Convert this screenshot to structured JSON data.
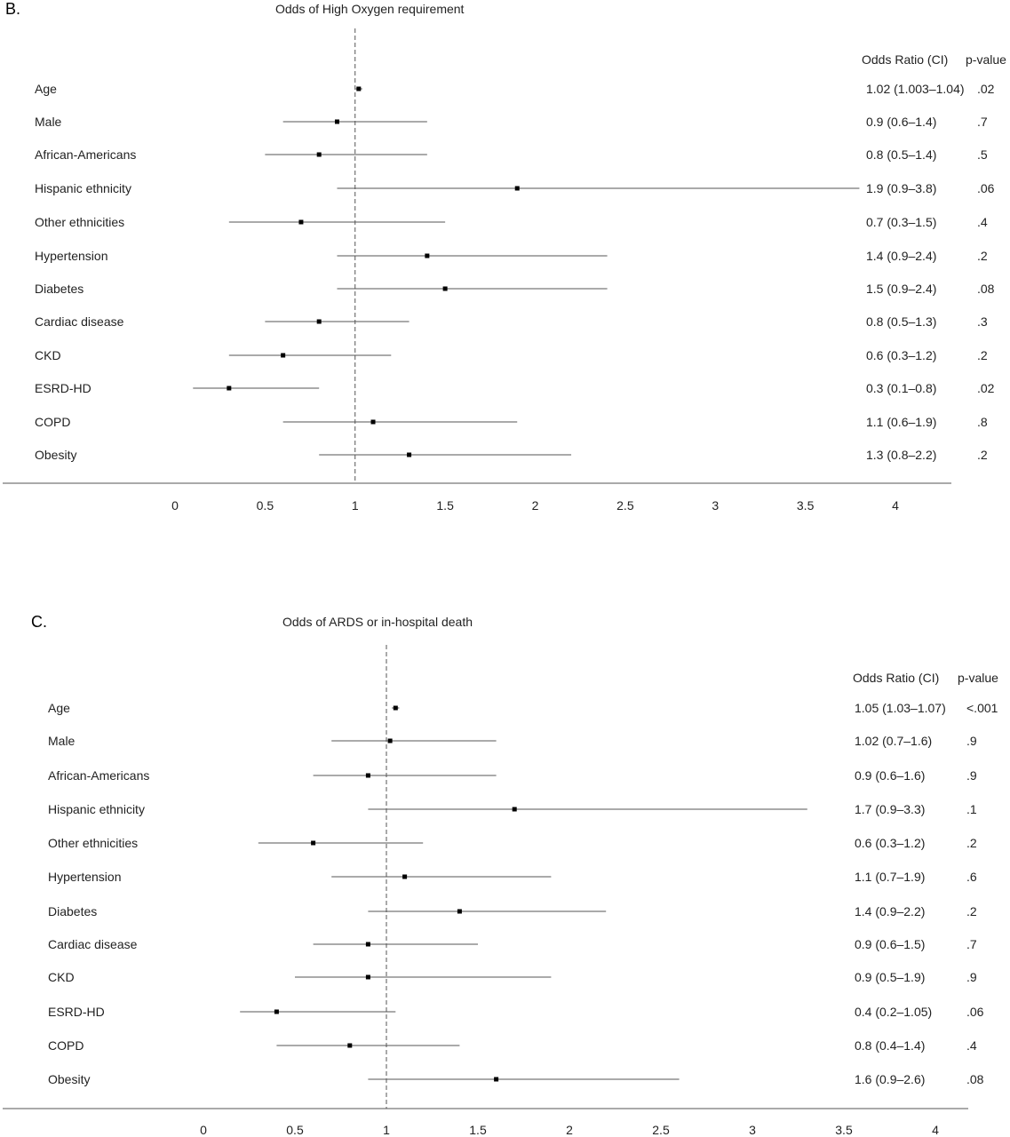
{
  "chart_data": [
    {
      "type": "forest",
      "panel_label": "B.",
      "title": "Odds of High Oxygen requirement",
      "column_headers": {
        "estimate": "Odds Ratio (CI)",
        "pvalue": "p-value"
      },
      "reference_value": 1,
      "xlim": [
        0,
        4
      ],
      "x_ticks": [
        0,
        0.5,
        1,
        1.5,
        2,
        2.5,
        3,
        3.5,
        4
      ],
      "x_tick_labels": [
        "0",
        "0.5",
        "1",
        "1.5",
        "2",
        "2.5",
        "3",
        "3.5",
        "4"
      ],
      "rows": [
        {
          "label": "Age",
          "or": 1.02,
          "lo": 1.003,
          "hi": 1.04,
          "ci_text": "1.02 (1.003–1.04)",
          "p": ".02"
        },
        {
          "label": "Male",
          "or": 0.9,
          "lo": 0.6,
          "hi": 1.4,
          "ci_text": "0.9 (0.6–1.4)",
          "p": ".7"
        },
        {
          "label": "African-Americans",
          "or": 0.8,
          "lo": 0.5,
          "hi": 1.4,
          "ci_text": "0.8 (0.5–1.4)",
          "p": ".5"
        },
        {
          "label": "Hispanic ethnicity",
          "or": 1.9,
          "lo": 0.9,
          "hi": 3.8,
          "ci_text": "1.9 (0.9–3.8)",
          "p": ".06"
        },
        {
          "label": "Other ethnicities",
          "or": 0.7,
          "lo": 0.3,
          "hi": 1.5,
          "ci_text": "0.7 (0.3–1.5)",
          "p": ".4"
        },
        {
          "label": "Hypertension",
          "or": 1.4,
          "lo": 0.9,
          "hi": 2.4,
          "ci_text": "1.4 (0.9–2.4)",
          "p": ".2"
        },
        {
          "label": "Diabetes",
          "or": 1.5,
          "lo": 0.9,
          "hi": 2.4,
          "ci_text": "1.5 (0.9–2.4)",
          "p": ".08"
        },
        {
          "label": "Cardiac disease",
          "or": 0.8,
          "lo": 0.5,
          "hi": 1.3,
          "ci_text": "0.8 (0.5–1.3)",
          "p": ".3"
        },
        {
          "label": "CKD",
          "or": 0.6,
          "lo": 0.3,
          "hi": 1.2,
          "ci_text": "0.6 (0.3–1.2)",
          "p": ".2"
        },
        {
          "label": "ESRD-HD",
          "or": 0.3,
          "lo": 0.1,
          "hi": 0.8,
          "ci_text": "0.3 (0.1–0.8)",
          "p": ".02"
        },
        {
          "label": "COPD",
          "or": 1.1,
          "lo": 0.6,
          "hi": 1.9,
          "ci_text": "1.1 (0.6–1.9)",
          "p": ".8"
        },
        {
          "label": "Obesity",
          "or": 1.3,
          "lo": 0.8,
          "hi": 2.2,
          "ci_text": "1.3 (0.8–2.2)",
          "p": ".2"
        }
      ]
    },
    {
      "type": "forest",
      "panel_label": "C.",
      "title": "Odds of ARDS or in-hospital death",
      "column_headers": {
        "estimate": "Odds Ratio (CI)",
        "pvalue": "p-value"
      },
      "reference_value": 1,
      "xlim": [
        0,
        4
      ],
      "x_ticks": [
        0,
        0.5,
        1,
        1.5,
        2,
        2.5,
        3,
        3.5,
        4
      ],
      "x_tick_labels": [
        "0",
        "0.5",
        "1",
        "1.5",
        "2",
        "2.5",
        "3",
        "3.5",
        "4"
      ],
      "rows": [
        {
          "label": "Age",
          "or": 1.05,
          "lo": 1.03,
          "hi": 1.07,
          "ci_text": "1.05 (1.03–1.07)",
          "p": "<.001"
        },
        {
          "label": "Male",
          "or": 1.02,
          "lo": 0.7,
          "hi": 1.6,
          "ci_text": "1.02 (0.7–1.6)",
          "p": ".9"
        },
        {
          "label": "African-Americans",
          "or": 0.9,
          "lo": 0.6,
          "hi": 1.6,
          "ci_text": "0.9 (0.6–1.6)",
          "p": ".9"
        },
        {
          "label": "Hispanic ethnicity",
          "or": 1.7,
          "lo": 0.9,
          "hi": 3.3,
          "ci_text": "1.7 (0.9–3.3)",
          "p": ".1"
        },
        {
          "label": "Other ethnicities",
          "or": 0.6,
          "lo": 0.3,
          "hi": 1.2,
          "ci_text": "0.6 (0.3–1.2)",
          "p": ".2"
        },
        {
          "label": "Hypertension",
          "or": 1.1,
          "lo": 0.7,
          "hi": 1.9,
          "ci_text": "1.1 (0.7–1.9)",
          "p": ".6"
        },
        {
          "label": "Diabetes",
          "or": 1.4,
          "lo": 0.9,
          "hi": 2.2,
          "ci_text": "1.4 (0.9–2.2)",
          "p": ".2"
        },
        {
          "label": "Cardiac disease",
          "or": 0.9,
          "lo": 0.6,
          "hi": 1.5,
          "ci_text": "0.9 (0.6–1.5)",
          "p": ".7"
        },
        {
          "label": "CKD",
          "or": 0.9,
          "lo": 0.5,
          "hi": 1.9,
          "ci_text": "0.9 (0.5–1.9)",
          "p": ".9"
        },
        {
          "label": "ESRD-HD",
          "or": 0.4,
          "lo": 0.2,
          "hi": 1.05,
          "ci_text": "0.4 (0.2–1.05)",
          "p": ".06"
        },
        {
          "label": "COPD",
          "or": 0.8,
          "lo": 0.4,
          "hi": 1.4,
          "ci_text": "0.8 (0.4–1.4)",
          "p": ".4"
        },
        {
          "label": "Obesity",
          "or": 1.6,
          "lo": 0.9,
          "hi": 2.6,
          "ci_text": "1.6 (0.9–2.6)",
          "p": ".08"
        }
      ]
    }
  ]
}
